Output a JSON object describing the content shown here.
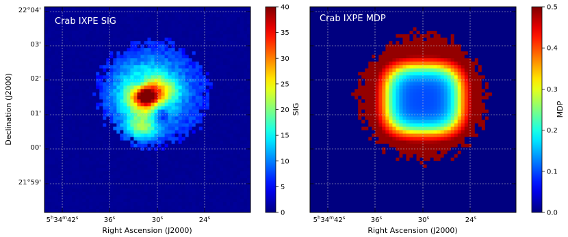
{
  "chart_data": [
    {
      "type": "heatmap",
      "title": "Crab IXPE SIG",
      "xlabel": "Right Ascension (J2000)",
      "ylabel": "Declination (J2000)",
      "x_ticks": [
        {
          "label": "5h34m42s",
          "h": "5",
          "m": "34",
          "s": "42"
        },
        {
          "label": "36s",
          "s": "36"
        },
        {
          "label": "30s",
          "s": "30"
        },
        {
          "label": "24s",
          "s": "24"
        }
      ],
      "y_ticks": [
        "22°04'",
        "03'",
        "02'",
        "01'",
        "00'",
        "21°59'"
      ],
      "grid": true,
      "colormap": "jet",
      "colorbar": {
        "label": "SIG",
        "range": [
          0,
          40
        ],
        "ticks": [
          "0",
          "5",
          "10",
          "15",
          "20",
          "25",
          "30",
          "35",
          "40"
        ]
      },
      "features": [
        {
          "kind": "disk",
          "cx": 0.53,
          "cy": 0.42,
          "radius": 0.27,
          "value": 8
        },
        {
          "kind": "peak",
          "cx": 0.49,
          "cy": 0.43,
          "radius": 0.13,
          "value": 20
        },
        {
          "kind": "peak",
          "cx": 0.48,
          "cy": 0.42,
          "radius": 0.12,
          "value": 22
        },
        {
          "kind": "peak",
          "cx": 0.49,
          "cy": 0.43,
          "radius": 0.08,
          "value": 24
        },
        {
          "kind": "peak",
          "cx": 0.49,
          "cy": 0.43,
          "radius": 0.03,
          "value": 34
        },
        {
          "kind": "hole",
          "cx": 0.47,
          "cy": 0.38,
          "radius": 0.05,
          "value": 10
        }
      ]
    },
    {
      "type": "heatmap",
      "title": "Crab IXPE MDP",
      "xlabel": "Right Ascension (J2000)",
      "ylabel": "",
      "x_ticks": [
        {
          "label": "5h34m42s",
          "h": "5",
          "m": "34",
          "s": "42"
        },
        {
          "label": "36s",
          "s": "36"
        },
        {
          "label": "30s",
          "s": "30"
        },
        {
          "label": "24s",
          "s": "24"
        }
      ],
      "y_ticks": [],
      "grid": true,
      "colormap": "jet",
      "colorbar": {
        "label": "MDP",
        "range": [
          0.0,
          0.5
        ],
        "ticks": [
          "0.0",
          "0.1",
          "0.2",
          "0.3",
          "0.4",
          "0.5"
        ]
      },
      "features": [
        {
          "kind": "disk",
          "cx": 0.55,
          "cy": 0.23,
          "radius": 0.31,
          "value": 0.49
        },
        {
          "kind": "core",
          "cx": 0.55,
          "cy": 0.45,
          "radius": 0.14,
          "value": 0.1
        },
        {
          "kind": "ring",
          "cx": 0.55,
          "cy": 0.45,
          "radius": 0.2,
          "value": 0.33
        }
      ]
    }
  ]
}
